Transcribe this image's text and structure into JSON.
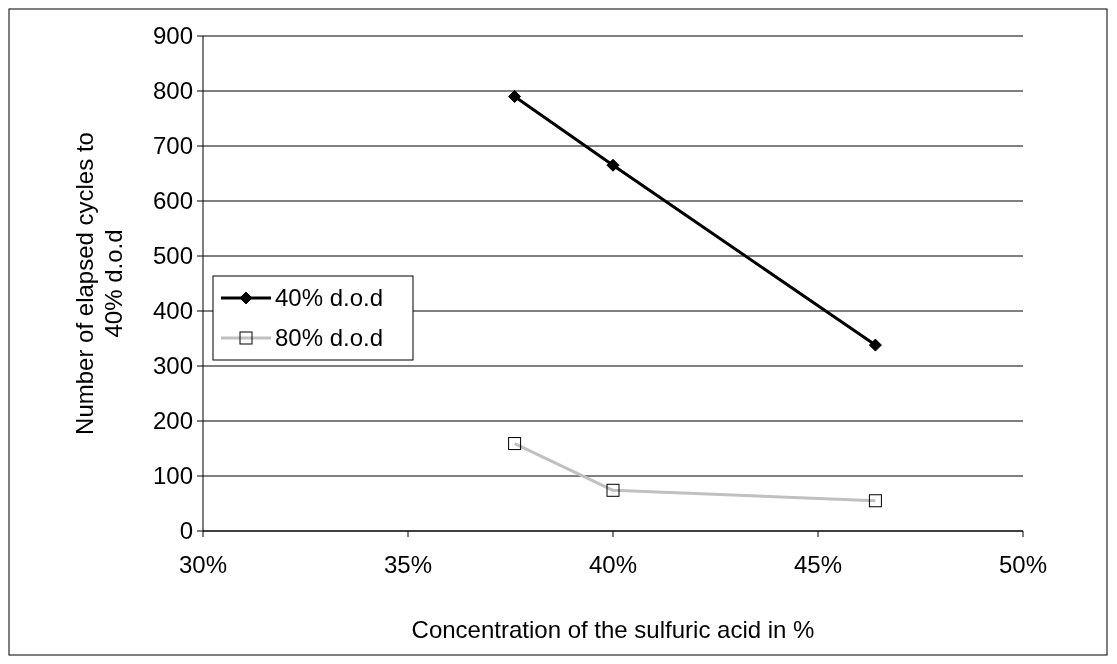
{
  "chart_data": {
    "type": "line",
    "xlabel": "Concentration of the sulfuric acid in %",
    "ylabel": "Number of elapsed cycles to 40% d.o.d",
    "x": [
      37.6,
      40,
      46.4
    ],
    "series": [
      {
        "name": "40% d.o.d",
        "color": "#000000",
        "values": [
          790,
          665,
          338
        ],
        "marker": "diamond"
      },
      {
        "name": "80% d.o.d",
        "color": "#c0c0c0",
        "values": [
          159,
          74,
          55
        ],
        "marker": "square"
      }
    ],
    "xlim": [
      30,
      50
    ],
    "xticks": [
      {
        "value": 30,
        "label": "30%"
      },
      {
        "value": 35,
        "label": "35%"
      },
      {
        "value": 40,
        "label": "40%"
      },
      {
        "value": 45,
        "label": "45%"
      },
      {
        "value": 50,
        "label": "50%"
      }
    ],
    "ylim": [
      0,
      900
    ],
    "yticks": [
      0,
      100,
      200,
      300,
      400,
      500,
      600,
      700,
      800,
      900
    ],
    "grid": "y",
    "legend": "left",
    "line_style": "solid"
  }
}
